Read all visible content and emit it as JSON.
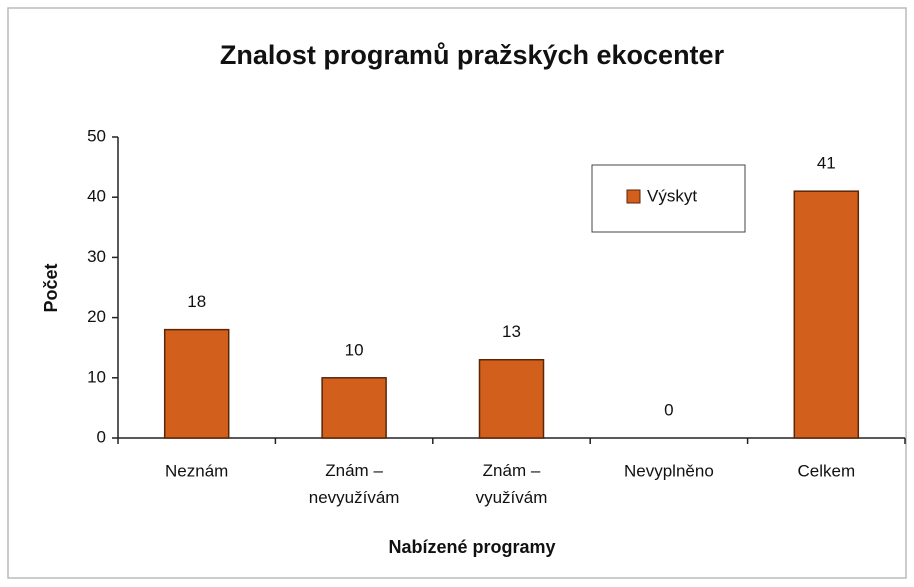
{
  "chart_data": {
    "type": "bar",
    "title": "Znalost programů pražských ekocenter",
    "x_label": "Nabízené programy",
    "y_label": "Počet",
    "categories": [
      "Neznám",
      "Znám – nevyužívám",
      "Znám – využívám",
      "Nevyplněno",
      "Celkem"
    ],
    "series": [
      {
        "name": "Výskyt",
        "color": "#d2601c",
        "values": [
          18,
          10,
          13,
          0,
          41
        ]
      }
    ],
    "ylim": [
      0,
      50
    ],
    "yticks": [
      0,
      10,
      20,
      30,
      40,
      50
    ],
    "grid": false,
    "legend": "upper right"
  }
}
